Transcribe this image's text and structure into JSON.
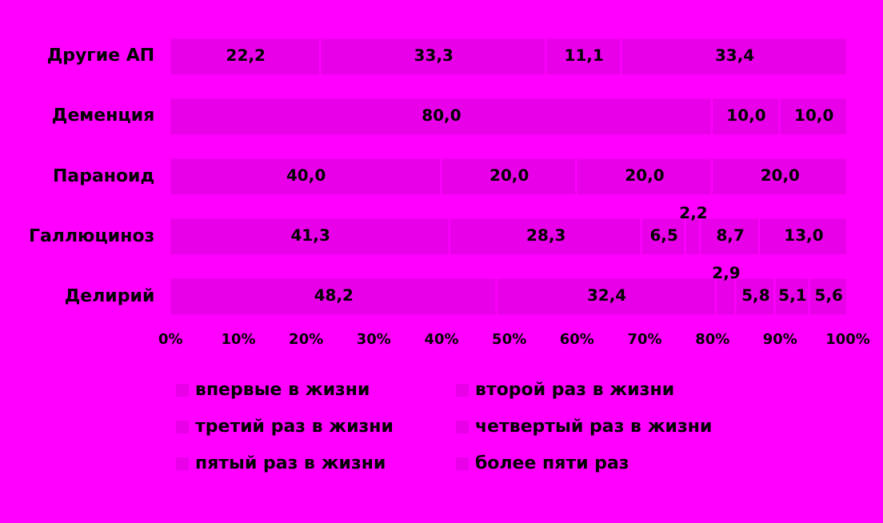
{
  "chart_data": {
    "type": "bar",
    "orientation": "horizontal",
    "stacked": true,
    "categories": [
      "Другие АП",
      "Деменция",
      "Параноид",
      "Галлюциноз",
      "Делирий"
    ],
    "series": [
      {
        "name": "впервые в жизни",
        "color": "#e800e8",
        "values": [
          22.2,
          80.0,
          40.0,
          41.3,
          48.2
        ],
        "value_labels": [
          "22,2",
          "80,0",
          "40,0",
          "41,3",
          "48,2"
        ]
      },
      {
        "name": "второй раз в жизни",
        "color": "#e800e8",
        "values": [
          33.3,
          10.0,
          20.0,
          28.3,
          32.4
        ],
        "value_labels": [
          "33,3",
          "10,0",
          "20,0",
          "28,3",
          "32,4"
        ]
      },
      {
        "name": "третий раз в жизни",
        "color": "#e800e8",
        "values": [
          11.1,
          10.0,
          20.0,
          6.5,
          2.9
        ],
        "value_labels": [
          "11,1",
          "10,0",
          "20,0",
          "6,5",
          "2,9"
        ]
      },
      {
        "name": "четвертый раз в жизни",
        "color": "#e800e8",
        "values": [
          33.4,
          null,
          20.0,
          2.2,
          5.8
        ],
        "value_labels": [
          "33,4",
          null,
          "20,0",
          "2,2",
          "5,8"
        ]
      },
      {
        "name": "пятый раз в жизни",
        "color": "#e800e8",
        "values": [
          null,
          null,
          null,
          8.7,
          5.1
        ],
        "value_labels": [
          null,
          null,
          null,
          "8,7",
          "5,1"
        ]
      },
      {
        "name": "более пяти раз",
        "color": "#e800e8",
        "values": [
          null,
          null,
          null,
          13.0,
          5.6
        ],
        "value_labels": [
          null,
          null,
          null,
          "13,0",
          "5,6"
        ]
      }
    ],
    "xlim": [
      0,
      100
    ],
    "xticks": [
      {
        "value": 0,
        "label": "0%"
      },
      {
        "value": 10,
        "label": "10%"
      },
      {
        "value": 20,
        "label": "20%"
      },
      {
        "value": 30,
        "label": "30%"
      },
      {
        "value": 40,
        "label": "40%"
      },
      {
        "value": 50,
        "label": "50%"
      },
      {
        "value": 60,
        "label": "60%"
      },
      {
        "value": 70,
        "label": "70%"
      },
      {
        "value": 80,
        "label": "80%"
      },
      {
        "value": 90,
        "label": "90%"
      },
      {
        "value": 100,
        "label": "100%"
      }
    ],
    "grid": false,
    "legend": "bottom"
  }
}
